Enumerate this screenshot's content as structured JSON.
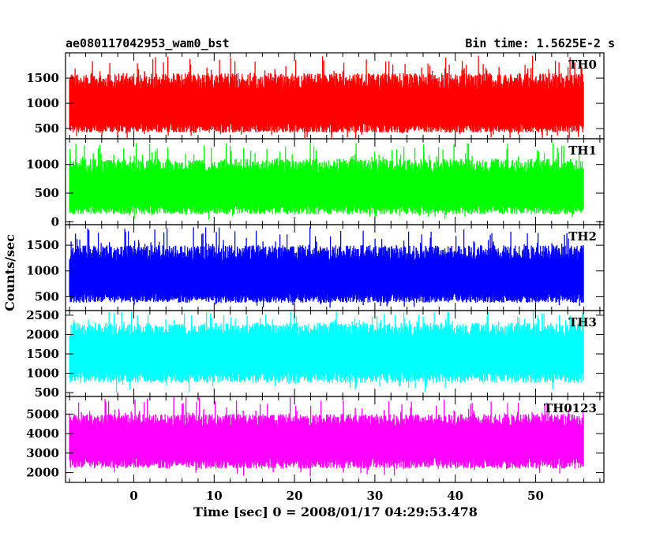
{
  "header": {
    "left_title": "ae080117042953_wam0_bst",
    "right_title": "Bin time: 1.5625E-2 s"
  },
  "chart_data": {
    "type": "line",
    "xlabel": "Time [sec] 0 = 2008/01/17 04:29:53.478",
    "ylabel": "Counts/sec",
    "xlim": [
      -8.5,
      58.5
    ],
    "x_range_data": [
      -8,
      56
    ],
    "x_ticks": [
      0,
      10,
      20,
      30,
      40,
      50
    ],
    "series": [
      {
        "name": "TH0",
        "color": "#ff0000",
        "ylim": [
          300,
          2000
        ],
        "y_ticks": [
          500,
          1000,
          1500
        ],
        "mean": 870,
        "low": 420,
        "high": 1600,
        "peak": 1950,
        "trough": 200
      },
      {
        "name": "TH1",
        "color": "#00ff00",
        "ylim": [
          -50,
          1450
        ],
        "y_ticks": [
          0,
          500,
          1000
        ],
        "mean": 520,
        "low": 130,
        "high": 1100,
        "peak": 1380,
        "trough": 30
      },
      {
        "name": "TH2",
        "color": "#0000ff",
        "ylim": [
          230,
          1900
        ],
        "y_ticks": [
          500,
          1000,
          1500
        ],
        "mean": 830,
        "low": 380,
        "high": 1500,
        "peak": 1850,
        "trough": 250
      },
      {
        "name": "TH3",
        "color": "#00ffff",
        "ylim": [
          400,
          2620
        ],
        "y_ticks": [
          500,
          1000,
          1500,
          2000,
          2500
        ],
        "mean": 1500,
        "low": 750,
        "high": 2300,
        "peak": 2600,
        "trough": 480
      },
      {
        "name": "TH0123",
        "color": "#ff00ff",
        "ylim": [
          1500,
          5900
        ],
        "y_ticks": [
          2000,
          3000,
          4000,
          5000
        ],
        "mean": 3600,
        "low": 2200,
        "high": 5000,
        "peak": 5850,
        "trough": 1700
      }
    ]
  }
}
